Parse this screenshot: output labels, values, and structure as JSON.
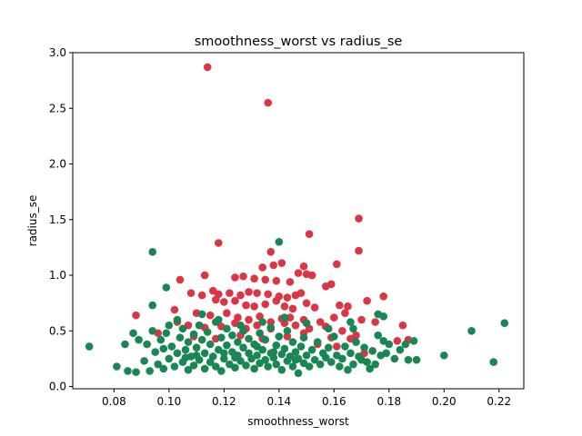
{
  "chart_data": {
    "type": "scatter",
    "title": "smoothness_worst vs radius_se",
    "xlabel": "smoothness_worst",
    "ylabel": "radius_se",
    "xlim": [
      0.065,
      0.229
    ],
    "ylim": [
      -0.02,
      3.0
    ],
    "x_ticks": [
      "0.08",
      "0.10",
      "0.12",
      "0.14",
      "0.16",
      "0.18",
      "0.20",
      "0.22"
    ],
    "y_ticks": [
      "0.0",
      "0.5",
      "1.0",
      "1.5",
      "2.0",
      "2.5",
      "3.0"
    ],
    "grid": false,
    "series": [
      {
        "color": "#dc3545",
        "points": [
          [
            0.114,
            2.87
          ],
          [
            0.136,
            2.55
          ],
          [
            0.169,
            1.51
          ],
          [
            0.169,
            1.22
          ],
          [
            0.151,
            1.37
          ],
          [
            0.118,
            1.29
          ],
          [
            0.137,
            1.21
          ],
          [
            0.141,
            1.11
          ],
          [
            0.138,
            1.09
          ],
          [
            0.134,
            1.07
          ],
          [
            0.149,
            1.08
          ],
          [
            0.147,
            1.02
          ],
          [
            0.161,
            1.1
          ],
          [
            0.15,
            1.01
          ],
          [
            0.152,
            1.0
          ],
          [
            0.113,
            1.0
          ],
          [
            0.124,
            0.98
          ],
          [
            0.127,
            0.99
          ],
          [
            0.131,
            0.97
          ],
          [
            0.135,
            0.96
          ],
          [
            0.139,
            0.95
          ],
          [
            0.144,
            0.94
          ],
          [
            0.104,
            0.96
          ],
          [
            0.157,
            0.9
          ],
          [
            0.159,
            0.92
          ],
          [
            0.116,
            0.86
          ],
          [
            0.118,
            0.83
          ],
          [
            0.122,
            0.84
          ],
          [
            0.126,
            0.82
          ],
          [
            0.129,
            0.85
          ],
          [
            0.132,
            0.84
          ],
          [
            0.136,
            0.83
          ],
          [
            0.14,
            0.81
          ],
          [
            0.143,
            0.8
          ],
          [
            0.146,
            0.82
          ],
          [
            0.148,
            0.84
          ],
          [
            0.178,
            0.81
          ],
          [
            0.108,
            0.84
          ],
          [
            0.112,
            0.82
          ],
          [
            0.117,
            0.78
          ],
          [
            0.12,
            0.76
          ],
          [
            0.124,
            0.77
          ],
          [
            0.128,
            0.73
          ],
          [
            0.131,
            0.72
          ],
          [
            0.135,
            0.74
          ],
          [
            0.139,
            0.77
          ],
          [
            0.142,
            0.72
          ],
          [
            0.145,
            0.7
          ],
          [
            0.15,
            0.75
          ],
          [
            0.153,
            0.71
          ],
          [
            0.162,
            0.73
          ],
          [
            0.165,
            0.72
          ],
          [
            0.172,
            0.77
          ],
          [
            0.102,
            0.69
          ],
          [
            0.11,
            0.66
          ],
          [
            0.115,
            0.64
          ],
          [
            0.121,
            0.66
          ],
          [
            0.125,
            0.62
          ],
          [
            0.129,
            0.6
          ],
          [
            0.133,
            0.63
          ],
          [
            0.137,
            0.58
          ],
          [
            0.141,
            0.61
          ],
          [
            0.144,
            0.62
          ],
          [
            0.149,
            0.6
          ],
          [
            0.155,
            0.58
          ],
          [
            0.16,
            0.62
          ],
          [
            0.164,
            0.66
          ],
          [
            0.17,
            0.6
          ],
          [
            0.175,
            0.58
          ],
          [
            0.088,
            0.64
          ],
          [
            0.103,
            0.58
          ],
          [
            0.107,
            0.55
          ],
          [
            0.113,
            0.53
          ],
          [
            0.119,
            0.54
          ],
          [
            0.124,
            0.57
          ],
          [
            0.128,
            0.52
          ],
          [
            0.132,
            0.55
          ],
          [
            0.137,
            0.52
          ],
          [
            0.142,
            0.57
          ],
          [
            0.146,
            0.55
          ],
          [
            0.151,
            0.52
          ],
          [
            0.157,
            0.54
          ],
          [
            0.163,
            0.5
          ],
          [
            0.168,
            0.46
          ],
          [
            0.185,
            0.55
          ],
          [
            0.096,
            0.48
          ],
          [
            0.109,
            0.45
          ],
          [
            0.117,
            0.43
          ],
          [
            0.126,
            0.46
          ],
          [
            0.134,
            0.43
          ],
          [
            0.143,
            0.45
          ],
          [
            0.149,
            0.48
          ],
          [
            0.159,
            0.44
          ],
          [
            0.166,
            0.43
          ],
          [
            0.183,
            0.41
          ],
          [
            0.154,
            0.38
          ],
          [
            0.161,
            0.36
          ],
          [
            0.171,
            0.3
          ],
          [
            0.187,
            0.42
          ]
        ]
      },
      {
        "color": "#198754",
        "points": [
          [
            0.14,
            1.3
          ],
          [
            0.094,
            1.21
          ],
          [
            0.099,
            0.89
          ],
          [
            0.112,
            0.65
          ],
          [
            0.167,
            0.52
          ],
          [
            0.176,
            0.65
          ],
          [
            0.178,
            0.63
          ],
          [
            0.21,
            0.5
          ],
          [
            0.222,
            0.57
          ],
          [
            0.218,
            0.22
          ],
          [
            0.2,
            0.28
          ],
          [
            0.071,
            0.36
          ],
          [
            0.081,
            0.18
          ],
          [
            0.084,
            0.38
          ],
          [
            0.085,
            0.14
          ],
          [
            0.087,
            0.48
          ],
          [
            0.088,
            0.13
          ],
          [
            0.089,
            0.42
          ],
          [
            0.091,
            0.23
          ],
          [
            0.092,
            0.38
          ],
          [
            0.093,
            0.14
          ],
          [
            0.094,
            0.5
          ],
          [
            0.094,
            0.73
          ],
          [
            0.095,
            0.31
          ],
          [
            0.096,
            0.2
          ],
          [
            0.097,
            0.42
          ],
          [
            0.098,
            0.16
          ],
          [
            0.099,
            0.48
          ],
          [
            0.1,
            0.25
          ],
          [
            0.1,
            0.55
          ],
          [
            0.101,
            0.36
          ],
          [
            0.102,
            0.18
          ],
          [
            0.103,
            0.6
          ],
          [
            0.103,
            0.3
          ],
          [
            0.104,
            0.44
          ],
          [
            0.105,
            0.22
          ],
          [
            0.105,
            0.52
          ],
          [
            0.106,
            0.33
          ],
          [
            0.107,
            0.15
          ],
          [
            0.107,
            0.4
          ],
          [
            0.108,
            0.27
          ],
          [
            0.109,
            0.47
          ],
          [
            0.109,
            0.19
          ],
          [
            0.11,
            0.35
          ],
          [
            0.111,
            0.24
          ],
          [
            0.111,
            0.55
          ],
          [
            0.112,
            0.42
          ],
          [
            0.113,
            0.16
          ],
          [
            0.113,
            0.3
          ],
          [
            0.114,
            0.49
          ],
          [
            0.115,
            0.22
          ],
          [
            0.115,
            0.38
          ],
          [
            0.116,
            0.27
          ],
          [
            0.117,
            0.58
          ],
          [
            0.117,
            0.18
          ],
          [
            0.118,
            0.33
          ],
          [
            0.119,
            0.44
          ],
          [
            0.119,
            0.14
          ],
          [
            0.12,
            0.25
          ],
          [
            0.121,
            0.37
          ],
          [
            0.121,
            0.52
          ],
          [
            0.122,
            0.2
          ],
          [
            0.123,
            0.31
          ],
          [
            0.123,
            0.46
          ],
          [
            0.124,
            0.17
          ],
          [
            0.125,
            0.28
          ],
          [
            0.125,
            0.4
          ],
          [
            0.126,
            0.23
          ],
          [
            0.127,
            0.35
          ],
          [
            0.127,
            0.5
          ],
          [
            0.128,
            0.19
          ],
          [
            0.129,
            0.3
          ],
          [
            0.129,
            0.43
          ],
          [
            0.13,
            0.25
          ],
          [
            0.131,
            0.16
          ],
          [
            0.131,
            0.38
          ],
          [
            0.132,
            0.28
          ],
          [
            0.133,
            0.48
          ],
          [
            0.133,
            0.21
          ],
          [
            0.134,
            0.33
          ],
          [
            0.135,
            0.24
          ],
          [
            0.135,
            0.42
          ],
          [
            0.136,
            0.18
          ],
          [
            0.137,
            0.3
          ],
          [
            0.137,
            0.53
          ],
          [
            0.138,
            0.26
          ],
          [
            0.139,
            0.37
          ],
          [
            0.139,
            0.2
          ],
          [
            0.14,
            0.45
          ],
          [
            0.141,
            0.29
          ],
          [
            0.141,
            0.15
          ],
          [
            0.142,
            0.34
          ],
          [
            0.143,
            0.23
          ],
          [
            0.143,
            0.5
          ],
          [
            0.144,
            0.27
          ],
          [
            0.145,
            0.18
          ],
          [
            0.145,
            0.4
          ],
          [
            0.146,
            0.31
          ],
          [
            0.147,
            0.12
          ],
          [
            0.147,
            0.25
          ],
          [
            0.148,
            0.36
          ],
          [
            0.149,
            0.21
          ],
          [
            0.149,
            0.44
          ],
          [
            0.15,
            0.28
          ],
          [
            0.151,
            0.18
          ],
          [
            0.152,
            0.33
          ],
          [
            0.153,
            0.24
          ],
          [
            0.154,
            0.4
          ],
          [
            0.155,
            0.2
          ],
          [
            0.156,
            0.3
          ],
          [
            0.157,
            0.26
          ],
          [
            0.158,
            0.35
          ],
          [
            0.159,
            0.22
          ],
          [
            0.16,
            0.45
          ],
          [
            0.161,
            0.28
          ],
          [
            0.162,
            0.18
          ],
          [
            0.163,
            0.25
          ],
          [
            0.164,
            0.36
          ],
          [
            0.165,
            0.15
          ],
          [
            0.166,
            0.3
          ],
          [
            0.167,
            0.2
          ],
          [
            0.168,
            0.4
          ],
          [
            0.169,
            0.27
          ],
          [
            0.17,
            0.24
          ],
          [
            0.171,
            0.35
          ],
          [
            0.172,
            0.22
          ],
          [
            0.173,
            0.16
          ],
          [
            0.174,
            0.32
          ],
          [
            0.175,
            0.2
          ],
          [
            0.176,
            0.46
          ],
          [
            0.177,
            0.28
          ],
          [
            0.178,
            0.41
          ],
          [
            0.179,
            0.3
          ],
          [
            0.18,
            0.38
          ],
          [
            0.182,
            0.25
          ],
          [
            0.184,
            0.33
          ],
          [
            0.186,
            0.38
          ],
          [
            0.187,
            0.24
          ],
          [
            0.189,
            0.41
          ],
          [
            0.19,
            0.24
          ],
          [
            0.118,
            0.6
          ],
          [
            0.126,
            0.55
          ],
          [
            0.134,
            0.58
          ],
          [
            0.142,
            0.62
          ],
          [
            0.15,
            0.57
          ],
          [
            0.158,
            0.52
          ],
          [
            0.166,
            0.58
          ],
          [
            0.11,
            0.28
          ],
          [
            0.124,
            0.26
          ],
          [
            0.138,
            0.31
          ],
          [
            0.146,
            0.24
          ],
          [
            0.132,
            0.36
          ],
          [
            0.12,
            0.3
          ],
          [
            0.106,
            0.26
          ],
          [
            0.098,
            0.34
          ]
        ]
      }
    ]
  }
}
